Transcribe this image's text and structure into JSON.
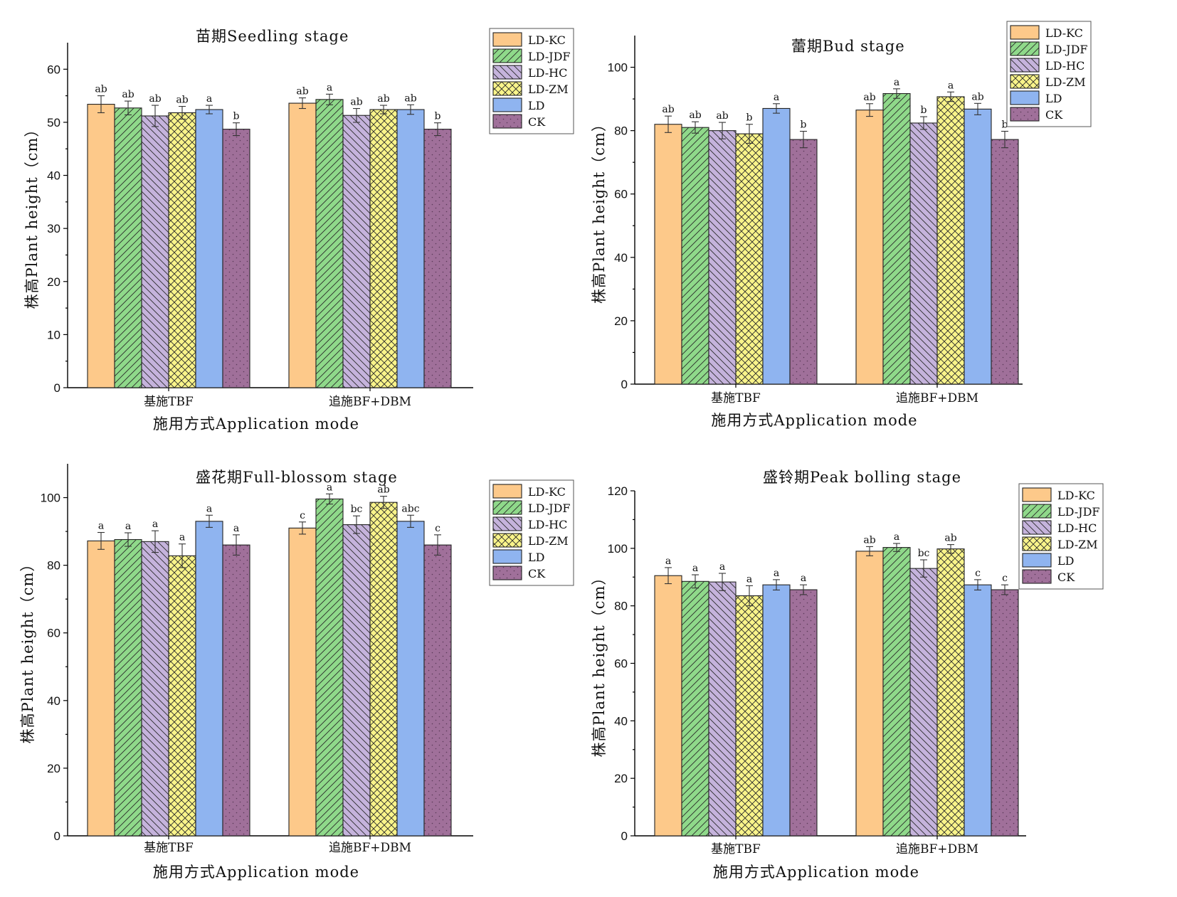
{
  "series_meta": [
    {
      "name": "LD-KC",
      "color": "#fdc98a",
      "pattern": "none"
    },
    {
      "name": "LD-JDF",
      "color": "#8fd98a",
      "pattern": "forward"
    },
    {
      "name": "LD-HC",
      "color": "#c5b3dc",
      "pattern": "back"
    },
    {
      "name": "LD-ZM",
      "color": "#f9f48a",
      "pattern": "cross"
    },
    {
      "name": "LD",
      "color": "#8fb4f0",
      "pattern": "none"
    },
    {
      "name": "CK",
      "color": "#a0709a",
      "pattern": "dots"
    }
  ],
  "chart_data": [
    {
      "type": "bar",
      "title": "苗期Seedling stage",
      "xlabel": "施用方式Application mode",
      "ylabel": "株高Plant height（cm）",
      "categories": [
        "基施TBF",
        "追施BF+DBM"
      ],
      "ylim": [
        0,
        65
      ],
      "yticks": [
        0,
        10,
        20,
        30,
        40,
        50,
        60
      ],
      "legend_position": "top-right",
      "series": [
        {
          "name": "LD-KC",
          "values": [
            53.4,
            53.6
          ],
          "errors": [
            1.6,
            1.0
          ],
          "labels": [
            "ab",
            "ab"
          ]
        },
        {
          "name": "LD-JDF",
          "values": [
            52.7,
            54.3
          ],
          "errors": [
            1.3,
            1.0
          ],
          "labels": [
            "ab",
            "a"
          ]
        },
        {
          "name": "LD-HC",
          "values": [
            51.2,
            51.3
          ],
          "errors": [
            2.0,
            1.3
          ],
          "labels": [
            "ab",
            "ab"
          ]
        },
        {
          "name": "LD-ZM",
          "values": [
            51.8,
            52.4
          ],
          "errors": [
            1.2,
            0.8
          ],
          "labels": [
            "ab",
            "ab"
          ]
        },
        {
          "name": "LD",
          "values": [
            52.4,
            52.4
          ],
          "errors": [
            0.8,
            0.9
          ],
          "labels": [
            "a",
            "ab"
          ]
        },
        {
          "name": "CK",
          "values": [
            48.7,
            48.7
          ],
          "errors": [
            1.2,
            1.2
          ],
          "labels": [
            "b",
            "b"
          ]
        }
      ]
    },
    {
      "type": "bar",
      "title": "蕾期Bud stage",
      "xlabel": "施用方式Application mode",
      "ylabel": "株高Plant height（cm）",
      "categories": [
        "基施TBF",
        "追施BF+DBM"
      ],
      "ylim": [
        0,
        110
      ],
      "yticks": [
        0,
        20,
        40,
        60,
        80,
        100
      ],
      "legend_position": "top-right",
      "series": [
        {
          "name": "LD-KC",
          "values": [
            82.0,
            86.5
          ],
          "errors": [
            2.6,
            2.0
          ],
          "labels": [
            "ab",
            "ab"
          ]
        },
        {
          "name": "LD-JDF",
          "values": [
            81.0,
            91.7
          ],
          "errors": [
            1.8,
            1.5
          ],
          "labels": [
            "ab",
            "a"
          ]
        },
        {
          "name": "LD-HC",
          "values": [
            80.0,
            82.4
          ],
          "errors": [
            2.6,
            2.0
          ],
          "labels": [
            "ab",
            "b"
          ]
        },
        {
          "name": "LD-ZM",
          "values": [
            79.0,
            90.7
          ],
          "errors": [
            3.0,
            1.5
          ],
          "labels": [
            "b",
            "a"
          ]
        },
        {
          "name": "LD",
          "values": [
            87.0,
            86.8
          ],
          "errors": [
            1.5,
            1.8
          ],
          "labels": [
            "a",
            "ab"
          ]
        },
        {
          "name": "CK",
          "values": [
            77.2,
            77.2
          ],
          "errors": [
            2.6,
            2.6
          ],
          "labels": [
            "b",
            "b"
          ]
        }
      ]
    },
    {
      "type": "bar",
      "title": "盛花期Full-blossom stage",
      "xlabel": "施用方式Application mode",
      "ylabel": "株高Plant height（cm）",
      "categories": [
        "基施TBF",
        "追施BF+DBM"
      ],
      "ylim": [
        0,
        110
      ],
      "yticks": [
        0,
        20,
        40,
        60,
        80,
        100
      ],
      "legend_position": "top-right",
      "series": [
        {
          "name": "LD-KC",
          "values": [
            87.2,
            91.0
          ],
          "errors": [
            2.5,
            1.8
          ],
          "labels": [
            "a",
            "c"
          ]
        },
        {
          "name": "LD-JDF",
          "values": [
            87.6,
            99.6
          ],
          "errors": [
            2.0,
            1.5
          ],
          "labels": [
            "a",
            "a"
          ]
        },
        {
          "name": "LD-HC",
          "values": [
            87.0,
            92.0
          ],
          "errors": [
            3.2,
            2.6
          ],
          "labels": [
            "a",
            "bc"
          ]
        },
        {
          "name": "LD-ZM",
          "values": [
            82.8,
            98.6
          ],
          "errors": [
            3.5,
            1.8
          ],
          "labels": [
            "a",
            "ab"
          ]
        },
        {
          "name": "LD",
          "values": [
            93.0,
            93.0
          ],
          "errors": [
            1.8,
            1.8
          ],
          "labels": [
            "a",
            "abc"
          ]
        },
        {
          "name": "CK",
          "values": [
            86.0,
            86.0
          ],
          "errors": [
            3.0,
            3.0
          ],
          "labels": [
            "a",
            "c"
          ]
        }
      ]
    },
    {
      "type": "bar",
      "title": "盛铃期Peak bolling stage",
      "xlabel": "施用方式Application mode",
      "ylabel": "株高Plant height（cm）",
      "categories": [
        "基施TBF",
        "追施BF+DBM"
      ],
      "ylim": [
        0,
        120
      ],
      "yticks": [
        0,
        20,
        40,
        60,
        80,
        100,
        120
      ],
      "legend_position": "top-right",
      "series": [
        {
          "name": "LD-KC",
          "values": [
            90.5,
            99.0
          ],
          "errors": [
            2.8,
            1.6
          ],
          "labels": [
            "a",
            "ab"
          ]
        },
        {
          "name": "LD-JDF",
          "values": [
            88.5,
            100.3
          ],
          "errors": [
            2.3,
            1.4
          ],
          "labels": [
            "a",
            "a"
          ]
        },
        {
          "name": "LD-HC",
          "values": [
            88.3,
            93.0
          ],
          "errors": [
            3.0,
            3.0
          ],
          "labels": [
            "a",
            "bc"
          ]
        },
        {
          "name": "LD-ZM",
          "values": [
            83.5,
            99.8
          ],
          "errors": [
            3.5,
            1.5
          ],
          "labels": [
            "a",
            "ab"
          ]
        },
        {
          "name": "LD",
          "values": [
            87.3,
            87.3
          ],
          "errors": [
            1.8,
            1.8
          ],
          "labels": [
            "a",
            "c"
          ]
        },
        {
          "name": "CK",
          "values": [
            85.6,
            85.6
          ],
          "errors": [
            1.7,
            1.7
          ],
          "labels": [
            "a",
            "c"
          ]
        }
      ]
    }
  ]
}
